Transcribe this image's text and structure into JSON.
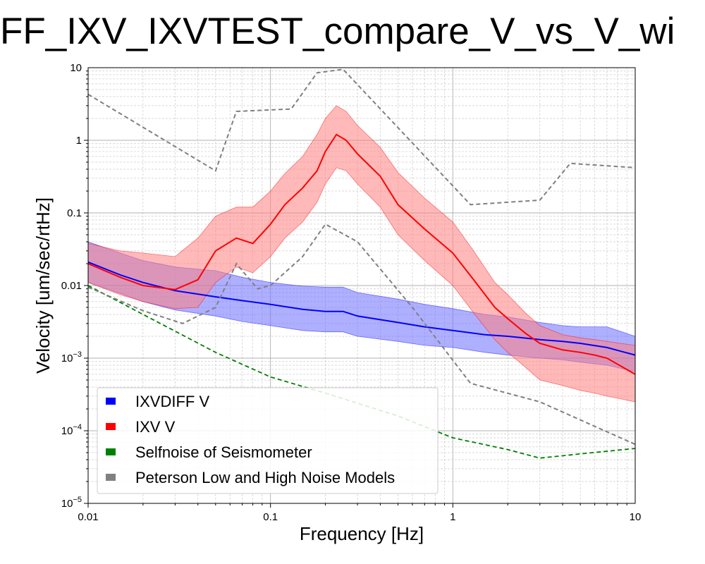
{
  "chart_data": {
    "type": "line",
    "title": "FF_IXV_IXVTEST_compare_V_vs_V_wi",
    "xlabel": "Frequency [Hz]",
    "ylabel": "Velocity [um/sec/rtHz]",
    "xscale": "log",
    "yscale": "log",
    "xlim": [
      0.01,
      10
    ],
    "ylim": [
      1e-05,
      10
    ],
    "grid": true,
    "legend_placement": "lower-left",
    "x_ticks": [
      {
        "value": 0.01,
        "label": "0.01"
      },
      {
        "value": 0.1,
        "label": "0.1"
      },
      {
        "value": 1,
        "label": "1"
      },
      {
        "value": 10,
        "label": "10"
      }
    ],
    "y_ticks": [
      {
        "value": 1e-05,
        "base": "10",
        "exp": "−5"
      },
      {
        "value": 0.0001,
        "base": "10",
        "exp": "−4"
      },
      {
        "value": 0.001,
        "base": "10",
        "exp": "−3"
      },
      {
        "value": 0.01,
        "label": "0.01"
      },
      {
        "value": 0.1,
        "label": "0.1"
      },
      {
        "value": 1,
        "label": "1"
      },
      {
        "value": 10,
        "label": "10"
      }
    ],
    "series": [
      {
        "name": "IXVDIFF V",
        "color": "#0000ff",
        "band_color": "#6e6eff",
        "x": [
          0.01,
          0.015,
          0.02,
          0.03,
          0.05,
          0.07,
          0.1,
          0.15,
          0.2,
          0.25,
          0.3,
          0.5,
          0.7,
          1,
          1.5,
          2,
          3,
          4,
          5,
          7,
          10
        ],
        "y": [
          0.021,
          0.014,
          0.011,
          0.0085,
          0.007,
          0.0062,
          0.0055,
          0.0047,
          0.0044,
          0.0044,
          0.0038,
          0.0031,
          0.0027,
          0.0024,
          0.0021,
          0.002,
          0.0018,
          0.0017,
          0.0016,
          0.0014,
          0.0011
        ],
        "upper": [
          0.04,
          0.028,
          0.022,
          0.018,
          0.016,
          0.013,
          0.011,
          0.0098,
          0.0095,
          0.0095,
          0.008,
          0.0065,
          0.0055,
          0.0048,
          0.004,
          0.0037,
          0.0031,
          0.0028,
          0.0027,
          0.0027,
          0.002
        ],
        "lower": [
          0.011,
          0.0078,
          0.006,
          0.0046,
          0.0038,
          0.0032,
          0.0028,
          0.0024,
          0.0023,
          0.0023,
          0.002,
          0.0017,
          0.0015,
          0.0014,
          0.0012,
          0.0011,
          0.001,
          0.00095,
          0.00088,
          0.0008,
          0.00065
        ]
      },
      {
        "name": "IXV V",
        "color": "#ff0000",
        "band_color": "#ff7f7f",
        "x": [
          0.01,
          0.015,
          0.02,
          0.03,
          0.04,
          0.05,
          0.065,
          0.08,
          0.1,
          0.12,
          0.15,
          0.18,
          0.2,
          0.23,
          0.26,
          0.3,
          0.4,
          0.5,
          0.7,
          1,
          1.3,
          1.7,
          2,
          2.5,
          3,
          4,
          5,
          6,
          7,
          10
        ],
        "y": [
          0.02,
          0.013,
          0.01,
          0.0088,
          0.012,
          0.03,
          0.045,
          0.038,
          0.07,
          0.13,
          0.22,
          0.38,
          0.7,
          1.2,
          1.0,
          0.65,
          0.32,
          0.13,
          0.06,
          0.028,
          0.012,
          0.005,
          0.0035,
          0.0022,
          0.0016,
          0.0013,
          0.0012,
          0.0011,
          0.001,
          0.0006
        ],
        "upper": [
          0.038,
          0.03,
          0.028,
          0.025,
          0.045,
          0.09,
          0.12,
          0.12,
          0.2,
          0.35,
          0.6,
          1.2,
          2.0,
          3.0,
          2.5,
          1.6,
          0.8,
          0.36,
          0.16,
          0.075,
          0.03,
          0.011,
          0.0075,
          0.0042,
          0.0028,
          0.0021,
          0.0019,
          0.0018,
          0.0017,
          0.0015
        ],
        "lower": [
          0.011,
          0.0075,
          0.006,
          0.0048,
          0.005,
          0.011,
          0.018,
          0.015,
          0.025,
          0.045,
          0.075,
          0.14,
          0.25,
          0.42,
          0.38,
          0.25,
          0.12,
          0.05,
          0.022,
          0.01,
          0.0042,
          0.0018,
          0.0012,
          0.00075,
          0.0005,
          0.00042,
          0.00036,
          0.00033,
          0.0003,
          0.00025
        ]
      },
      {
        "name": "Selfnoise of Seismometer",
        "color": "#008000",
        "style": "dashed",
        "x": [
          0.01,
          0.02,
          0.05,
          0.1,
          0.2,
          0.5,
          1,
          2,
          3,
          5,
          10
        ],
        "y": [
          0.01,
          0.004,
          0.0012,
          0.00055,
          0.00033,
          0.00016,
          8e-05,
          5.5e-05,
          4.2e-05,
          4.8e-05,
          5.7e-05
        ]
      },
      {
        "name": "Peterson Low and High Noise Models",
        "color": "#808080",
        "style": "dashed",
        "segments": [
          {
            "x": [
              0.01,
              0.05,
              0.065,
              0.13,
              0.18,
              0.25,
              1.25,
              3,
              4.4,
              10
            ],
            "y": [
              4.3,
              0.38,
              2.5,
              2.7,
              8.5,
              9.5,
              0.13,
              0.15,
              0.48,
              0.42
            ]
          },
          {
            "x": [
              0.01,
              0.02,
              0.033,
              0.05,
              0.065,
              0.085,
              0.1,
              0.15,
              0.2,
              0.3,
              0.6,
              1.25,
              3,
              10
            ],
            "y": [
              0.0095,
              0.0045,
              0.003,
              0.005,
              0.02,
              0.009,
              0.01,
              0.025,
              0.07,
              0.04,
              0.005,
              0.00045,
              0.00025,
              6.5e-05
            ]
          }
        ]
      }
    ]
  }
}
